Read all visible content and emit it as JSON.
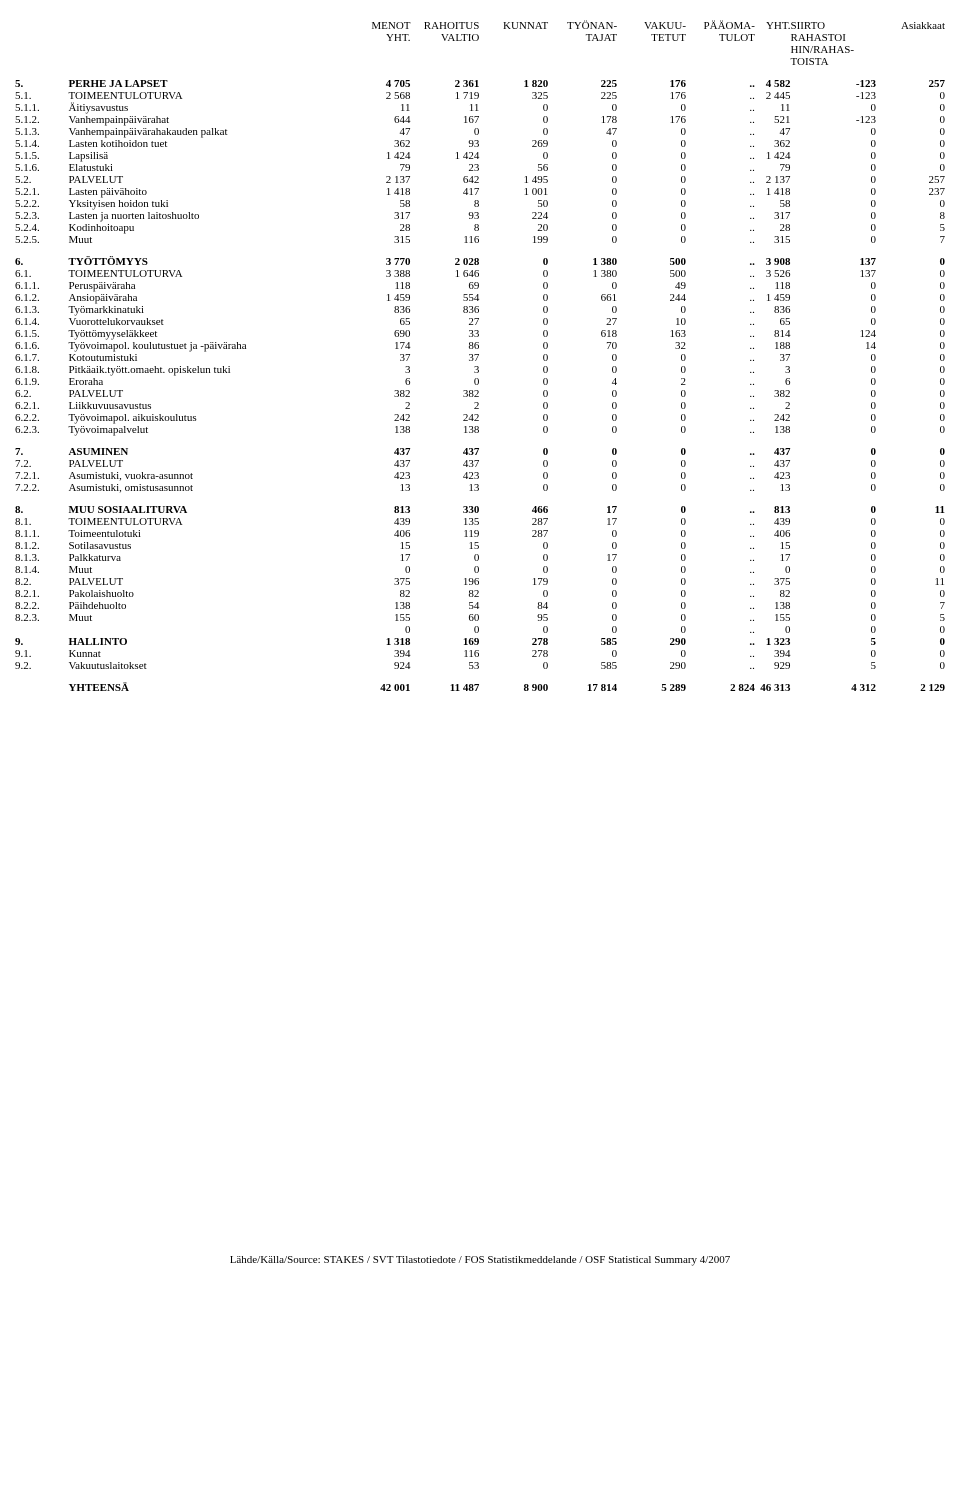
{
  "headers": {
    "h1": "MENOT\nYHT.",
    "h2": "RAHOITUS\nVALTIO",
    "h3": "KUNNAT",
    "h4": "TYÖNAN-\nTAJAT",
    "h5": "VAKUU-\nTETUT",
    "h6": "PÄÄOMA-\nTULOT",
    "h7": "YHT.",
    "h8": "SIIRTO\nRAHASTOI\nHIN/RAHAS-\nTOISTA",
    "h9": "Asiakkaat"
  },
  "rows": [
    {
      "bold": true,
      "code": "5.",
      "name": "PERHE JA LAPSET",
      "v": [
        "4 705",
        "2 361",
        "1 820",
        "225",
        "176",
        "..",
        "4 582",
        "-123",
        "257"
      ]
    },
    {
      "code": "5.1.",
      "name": "TOIMEENTULOTURVA",
      "v": [
        "2 568",
        "1 719",
        "325",
        "225",
        "176",
        "..",
        "2 445",
        "-123",
        "0"
      ]
    },
    {
      "code": "5.1.1.",
      "name": "Äitiysavustus",
      "v": [
        "11",
        "11",
        "0",
        "0",
        "0",
        "..",
        "11",
        "0",
        "0"
      ]
    },
    {
      "code": "5.1.2.",
      "name": "Vanhempainpäivärahat",
      "v": [
        "644",
        "167",
        "0",
        "178",
        "176",
        "..",
        "521",
        "-123",
        "0"
      ]
    },
    {
      "code": "5.1.3.",
      "name": "Vanhempainpäivärahakauden palkat",
      "v": [
        "47",
        "0",
        "0",
        "47",
        "0",
        "..",
        "47",
        "0",
        "0"
      ]
    },
    {
      "code": "5.1.4.",
      "name": "Lasten kotihoidon tuet",
      "v": [
        "362",
        "93",
        "269",
        "0",
        "0",
        "..",
        "362",
        "0",
        "0"
      ]
    },
    {
      "code": "5.1.5.",
      "name": "Lapsilisä",
      "v": [
        "1 424",
        "1 424",
        "0",
        "0",
        "0",
        "..",
        "1 424",
        "0",
        "0"
      ]
    },
    {
      "code": "5.1.6.",
      "name": "Elatustuki",
      "v": [
        "79",
        "23",
        "56",
        "0",
        "0",
        "..",
        "79",
        "0",
        "0"
      ]
    },
    {
      "code": "5.2.",
      "name": "PALVELUT",
      "v": [
        "2 137",
        "642",
        "1 495",
        "0",
        "0",
        "..",
        "2 137",
        "0",
        "257"
      ]
    },
    {
      "code": "5.2.1.",
      "name": "Lasten päivähoito",
      "v": [
        "1 418",
        "417",
        "1 001",
        "0",
        "0",
        "..",
        "1 418",
        "0",
        "237"
      ]
    },
    {
      "code": "5.2.2.",
      "name": "Yksityisen hoidon tuki",
      "v": [
        "58",
        "8",
        "50",
        "0",
        "0",
        "..",
        "58",
        "0",
        "0"
      ]
    },
    {
      "code": "5.2.3.",
      "name": "Lasten ja nuorten laitoshuolto",
      "v": [
        "317",
        "93",
        "224",
        "0",
        "0",
        "..",
        "317",
        "0",
        "8"
      ]
    },
    {
      "code": "5.2.4.",
      "name": "Kodinhoitoapu",
      "v": [
        "28",
        "8",
        "20",
        "0",
        "0",
        "..",
        "28",
        "0",
        "5"
      ]
    },
    {
      "code": "5.2.5.",
      "name": "Muut",
      "v": [
        "315",
        "116",
        "199",
        "0",
        "0",
        "..",
        "315",
        "0",
        "7"
      ]
    },
    {
      "gap": true
    },
    {
      "bold": true,
      "code": "6.",
      "name": "TYÖTTÖMYYS",
      "v": [
        "3 770",
        "2 028",
        "0",
        "1 380",
        "500",
        "..",
        "3 908",
        "137",
        "0"
      ]
    },
    {
      "code": "6.1.",
      "name": "TOIMEENTULOTURVA",
      "v": [
        "3 388",
        "1 646",
        "0",
        "1 380",
        "500",
        "..",
        "3 526",
        "137",
        "0"
      ]
    },
    {
      "code": "6.1.1.",
      "name": "Peruspäiväraha",
      "v": [
        "118",
        "69",
        "0",
        "0",
        "49",
        "..",
        "118",
        "0",
        "0"
      ]
    },
    {
      "code": "6.1.2.",
      "name": "Ansiopäiväraha",
      "v": [
        "1 459",
        "554",
        "0",
        "661",
        "244",
        "..",
        "1 459",
        "0",
        "0"
      ]
    },
    {
      "code": "6.1.3.",
      "name": "Työmarkkinatuki",
      "v": [
        "836",
        "836",
        "0",
        "0",
        "0",
        "..",
        "836",
        "0",
        "0"
      ]
    },
    {
      "code": "6.1.4.",
      "name": "Vuorottelukorvaukset",
      "v": [
        "65",
        "27",
        "0",
        "27",
        "10",
        "..",
        "65",
        "0",
        "0"
      ]
    },
    {
      "code": "6.1.5.",
      "name": "Työttömyyseläkkeet",
      "v": [
        "690",
        "33",
        "0",
        "618",
        "163",
        "..",
        "814",
        "124",
        "0"
      ]
    },
    {
      "code": "6.1.6.",
      "name": "Työvoimapol. koulutustuet ja -päiväraha",
      "v": [
        "174",
        "86",
        "0",
        "70",
        "32",
        "..",
        "188",
        "14",
        "0"
      ]
    },
    {
      "code": "6.1.7.",
      "name": "Kotoutumistuki",
      "v": [
        "37",
        "37",
        "0",
        "0",
        "0",
        "..",
        "37",
        "0",
        "0"
      ]
    },
    {
      "code": "6.1.8.",
      "name": "Pitkäaik.tyött.omaeht. opiskelun tuki",
      "v": [
        "3",
        "3",
        "0",
        "0",
        "0",
        "..",
        "3",
        "0",
        "0"
      ]
    },
    {
      "code": "6.1.9.",
      "name": "Eroraha",
      "v": [
        "6",
        "0",
        "0",
        "4",
        "2",
        "..",
        "6",
        "0",
        "0"
      ]
    },
    {
      "code": "6.2.",
      "name": "PALVELUT",
      "v": [
        "382",
        "382",
        "0",
        "0",
        "0",
        "..",
        "382",
        "0",
        "0"
      ]
    },
    {
      "code": "6.2.1.",
      "name": "Liikkuvuusavustus",
      "v": [
        "2",
        "2",
        "0",
        "0",
        "0",
        "..",
        "2",
        "0",
        "0"
      ]
    },
    {
      "code": "6.2.2.",
      "name": "Työvoimapol. aikuiskoulutus",
      "v": [
        "242",
        "242",
        "0",
        "0",
        "0",
        "..",
        "242",
        "0",
        "0"
      ]
    },
    {
      "code": "6.2.3.",
      "name": "Työvoimapalvelut",
      "v": [
        "138",
        "138",
        "0",
        "0",
        "0",
        "..",
        "138",
        "0",
        "0"
      ]
    },
    {
      "gap": true
    },
    {
      "bold": true,
      "code": "7.",
      "name": "ASUMINEN",
      "v": [
        "437",
        "437",
        "0",
        "0",
        "0",
        "..",
        "437",
        "0",
        "0"
      ]
    },
    {
      "code": "7.2.",
      "name": "PALVELUT",
      "v": [
        "437",
        "437",
        "0",
        "0",
        "0",
        "..",
        "437",
        "0",
        "0"
      ]
    },
    {
      "code": "7.2.1.",
      "name": "Asumistuki, vuokra-asunnot",
      "v": [
        "423",
        "423",
        "0",
        "0",
        "0",
        "..",
        "423",
        "0",
        "0"
      ]
    },
    {
      "code": "7.2.2.",
      "name": "Asumistuki, omistusasunnot",
      "v": [
        "13",
        "13",
        "0",
        "0",
        "0",
        "..",
        "13",
        "0",
        "0"
      ]
    },
    {
      "gap": true
    },
    {
      "bold": true,
      "code": "8.",
      "name": "MUU SOSIAALITURVA",
      "v": [
        "813",
        "330",
        "466",
        "17",
        "0",
        "..",
        "813",
        "0",
        "11"
      ]
    },
    {
      "code": "8.1.",
      "name": "TOIMEENTULOTURVA",
      "v": [
        "439",
        "135",
        "287",
        "17",
        "0",
        "..",
        "439",
        "0",
        "0"
      ]
    },
    {
      "code": "8.1.1.",
      "name": "Toimeentulotuki",
      "v": [
        "406",
        "119",
        "287",
        "0",
        "0",
        "..",
        "406",
        "0",
        "0"
      ]
    },
    {
      "code": "8.1.2.",
      "name": "Sotilasavustus",
      "v": [
        "15",
        "15",
        "0",
        "0",
        "0",
        "..",
        "15",
        "0",
        "0"
      ]
    },
    {
      "code": "8.1.3.",
      "name": "Palkkaturva",
      "v": [
        "17",
        "0",
        "0",
        "17",
        "0",
        "..",
        "17",
        "0",
        "0"
      ]
    },
    {
      "code": "8.1.4.",
      "name": "Muut",
      "v": [
        "0",
        "0",
        "0",
        "0",
        "0",
        "..",
        "0",
        "0",
        "0"
      ]
    },
    {
      "code": "8.2.",
      "name": "PALVELUT",
      "v": [
        "375",
        "196",
        "179",
        "0",
        "0",
        "..",
        "375",
        "0",
        "11"
      ]
    },
    {
      "code": "8.2.1.",
      "name": "Pakolaishuolto",
      "v": [
        "82",
        "82",
        "0",
        "0",
        "0",
        "..",
        "82",
        "0",
        "0"
      ]
    },
    {
      "code": "8.2.2.",
      "name": "Päihdehuolto",
      "v": [
        "138",
        "54",
        "84",
        "0",
        "0",
        "..",
        "138",
        "0",
        "7"
      ]
    },
    {
      "code": "8.2.3.",
      "name": "Muut",
      "v": [
        "155",
        "60",
        "95",
        "0",
        "0",
        "..",
        "155",
        "0",
        "5"
      ]
    },
    {
      "code": "",
      "name": "",
      "v": [
        "0",
        "0",
        "0",
        "0",
        "0",
        "..",
        "0",
        "0",
        "0"
      ]
    },
    {
      "bold": true,
      "code": "9.",
      "name": "HALLINTO",
      "v": [
        "1 318",
        "169",
        "278",
        "585",
        "290",
        "..",
        "1 323",
        "5",
        "0"
      ]
    },
    {
      "code": "9.1.",
      "name": "Kunnat",
      "v": [
        "394",
        "116",
        "278",
        "0",
        "0",
        "..",
        "394",
        "0",
        "0"
      ]
    },
    {
      "code": "9.2.",
      "name": "Vakuutuslaitokset",
      "v": [
        "924",
        "53",
        "0",
        "585",
        "290",
        "..",
        "929",
        "5",
        "0"
      ]
    },
    {
      "gap": true
    },
    {
      "bold": true,
      "code": "",
      "name": "YHTEENSÄ",
      "v": [
        "42 001",
        "11 487",
        "8 900",
        "17 814",
        "5 289",
        "2 824",
        "46 313",
        "4 312",
        "2 129"
      ]
    }
  ],
  "footer": "Lähde/Källa/Source: STAKES / SVT Tilastotiedote / FOS Statistikmeddelande / OSF Statistical Summary 4/2007"
}
